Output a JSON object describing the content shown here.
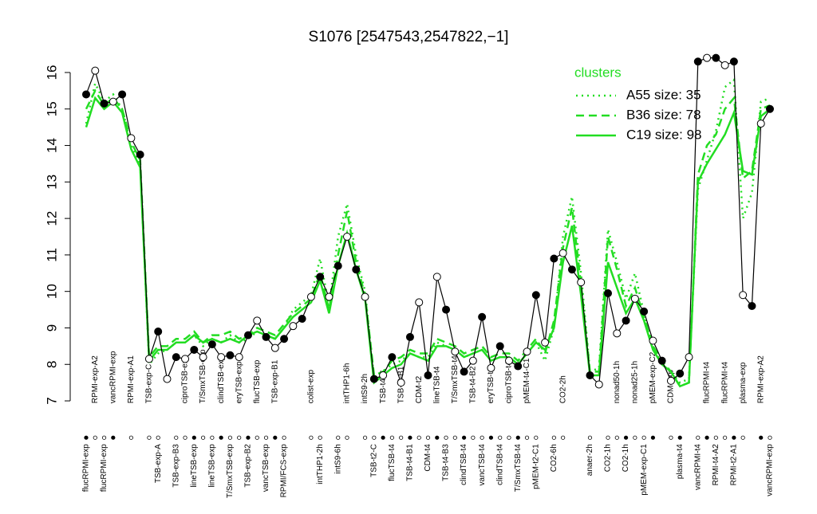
{
  "chart_data": {
    "type": "line",
    "title": "S1076 [2547543,2547822,−1]",
    "categories": [
      "flucRPMI-exp",
      "RPMI-exp-A2",
      "flucRPMI-exp",
      "vancRPMI-exp",
      null,
      "RPMI-exp-A1",
      null,
      "TSB-exp-C",
      "TSB-exp-A",
      null,
      "TSB-exp-B3",
      "ciproTSB-exp",
      "lineTSB-exp",
      "T/SmxTSB-exp",
      "lineTSB-exp",
      "clindTSB-exp",
      "T/SmxTSB-exp",
      "eryTSB-exp",
      "TSB-exp-B2",
      "flucTSB-exp",
      "vancTSB-exp",
      "TSB-exp-B1",
      "RPMI/FCS-exp",
      null,
      null,
      "colist-exp",
      "intTHP1-2h",
      null,
      "intS9-6h",
      "intTHP1-6h",
      null,
      "intS9-2h",
      "TSB-t2-C",
      "TSB-t4-C",
      "flucTSB-t4",
      "TSB-t2-B1",
      "TSB-t4-B1",
      "CDM-t2",
      "CDM-t4",
      "lineTSB-t4",
      "TSB-t4-B3",
      "T/SmxTSB-t4",
      "clindTSB-t4",
      "TSB-t4-B2",
      "vancTSB-t4",
      "eryTSB-t4",
      "clindTSB-t4",
      "ciproTSB-t4",
      "T/SmxTSB-t4",
      "pMEM-t4-C1",
      "pMEM-t2-C1",
      null,
      "CO2-6h",
      "CO2-2h",
      null,
      null,
      "anaer-2h",
      null,
      "CO2-1h",
      "nonad50-1h",
      "CO2-1h",
      "nonad25-1h",
      "pMEM-exp-C1",
      "pMEM-exp-C2",
      null,
      "CDM-exp",
      "plasma-t4",
      null,
      "vancRPMI-t4",
      "flucRPMI-t4",
      "RPMI-t4-A2",
      "flucRPMI-t4",
      "RPMI-t2-A1",
      "plasma-exp",
      null,
      "RPMI-exp-A2",
      "vancRPMI-exp"
    ],
    "values": [
      15.4,
      16.05,
      15.15,
      15.2,
      15.4,
      14.2,
      13.75,
      8.15,
      8.9,
      7.6,
      8.2,
      8.15,
      8.4,
      8.2,
      8.55,
      8.2,
      8.25,
      8.2,
      8.8,
      9.2,
      8.75,
      8.45,
      8.7,
      9.05,
      9.25,
      9.85,
      10.4,
      9.85,
      10.7,
      11.5,
      10.6,
      9.85,
      7.6,
      7.7,
      8.2,
      7.5,
      8.75,
      9.7,
      7.7,
      10.4,
      9.5,
      8.35,
      7.8,
      8.1,
      9.3,
      7.9,
      8.5,
      8.1,
      7.95,
      8.35,
      9.9,
      8.6,
      10.9,
      11.05,
      10.6,
      10.25,
      7.7,
      7.45,
      9.95,
      8.85,
      9.2,
      9.8,
      9.45,
      8.65,
      8.1,
      7.55,
      7.75,
      8.2,
      16.3,
      16.4,
      16.4,
      16.2,
      16.3,
      9.9,
      9.6,
      14.6,
      15.0
    ],
    "color": "#000000",
    "series": [
      {
        "name": "A55 size: 35",
        "color": "#22dd22",
        "dash": "dotted",
        "values": [
          14.6,
          15.7,
          15.2,
          15.4,
          15.0,
          14.0,
          13.5,
          8.0,
          8.3,
          8.4,
          8.6,
          8.6,
          8.8,
          8.5,
          8.7,
          8.6,
          8.8,
          8.6,
          8.7,
          8.9,
          8.8,
          8.7,
          9.0,
          9.5,
          9.7,
          9.9,
          10.9,
          9.6,
          11.5,
          12.4,
          11.0,
          10.0,
          7.6,
          7.8,
          8.0,
          8.1,
          8.3,
          8.2,
          8.2,
          8.6,
          8.5,
          8.4,
          8.2,
          8.3,
          8.4,
          8.1,
          8.2,
          8.2,
          8.0,
          8.3,
          8.6,
          8.1,
          9.0,
          11.5,
          12.6,
          10.5,
          7.8,
          7.9,
          11.7,
          10.8,
          9.8,
          10.5,
          9.4,
          8.5,
          8.0,
          7.8,
          7.5,
          7.6,
          12.8,
          13.6,
          14.4,
          15.6,
          15.8,
          12.0,
          12.7,
          15.2,
          15.3
        ]
      },
      {
        "name": "B36 size: 78",
        "color": "#22dd22",
        "dash": "dashed",
        "values": [
          15.0,
          15.5,
          15.1,
          15.3,
          15.0,
          14.1,
          13.6,
          8.2,
          8.5,
          8.5,
          8.7,
          8.7,
          8.9,
          8.6,
          8.8,
          8.8,
          8.9,
          8.7,
          8.8,
          9.0,
          8.9,
          8.8,
          9.1,
          9.4,
          9.6,
          9.8,
          10.5,
          9.5,
          11.0,
          12.2,
          10.8,
          9.9,
          7.7,
          7.8,
          8.1,
          8.2,
          8.4,
          8.3,
          8.3,
          8.7,
          8.6,
          8.5,
          8.3,
          8.4,
          8.5,
          8.2,
          8.3,
          8.3,
          8.1,
          8.4,
          8.7,
          8.3,
          9.2,
          11.2,
          12.3,
          10.2,
          7.8,
          7.8,
          11.5,
          10.6,
          9.6,
          10.1,
          9.3,
          8.5,
          8.1,
          7.8,
          7.4,
          7.5,
          13.2,
          14.0,
          14.3,
          15.0,
          15.3,
          13.1,
          13.3,
          15.0,
          15.1
        ]
      },
      {
        "name": "C19 size: 98",
        "color": "#22dd22",
        "dash": "solid",
        "values": [
          14.5,
          15.3,
          15.0,
          15.2,
          14.9,
          13.9,
          13.4,
          8.1,
          8.4,
          8.4,
          8.6,
          8.6,
          8.8,
          8.6,
          8.7,
          8.6,
          8.7,
          8.6,
          8.8,
          8.9,
          8.8,
          8.7,
          9.0,
          9.3,
          9.5,
          9.7,
          10.3,
          9.4,
          10.7,
          11.6,
          10.6,
          9.8,
          7.5,
          7.7,
          7.9,
          8.0,
          8.3,
          8.2,
          8.1,
          8.5,
          8.5,
          8.4,
          8.2,
          8.3,
          8.4,
          8.1,
          8.2,
          8.2,
          8.0,
          8.3,
          8.6,
          8.4,
          9.0,
          10.8,
          11.8,
          9.9,
          7.7,
          7.7,
          10.8,
          10.1,
          9.4,
          9.8,
          9.2,
          8.4,
          8.0,
          7.8,
          7.4,
          7.5,
          13.0,
          13.5,
          13.9,
          14.3,
          14.9,
          13.3,
          13.2,
          14.8,
          15.0
        ]
      }
    ],
    "legend_title": "clusters",
    "ylim": [
      6.8,
      16.6
    ],
    "yticks": [
      7,
      8,
      9,
      10,
      11,
      12,
      13,
      14,
      15,
      16
    ]
  }
}
